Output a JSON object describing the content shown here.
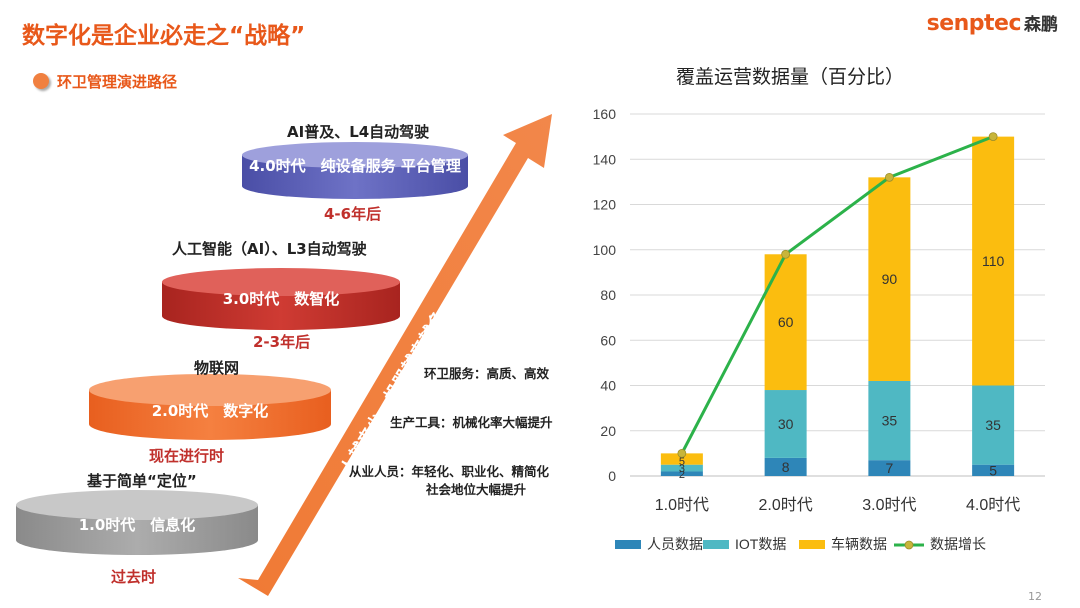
{
  "header": {
    "title": "数字化是企业必走之“战略”",
    "logo_brand": "senptec",
    "logo_cn": "森鹏",
    "subtitle": "环卫管理演进路径"
  },
  "stages": [
    {
      "caption": "AI普及、L4自动驾驶",
      "label": "4.0时代　纯设备服务 平台管理",
      "time": "4-6年后",
      "color": "#5e62b8"
    },
    {
      "caption": "人工智能（AI）、L3自动驾驶",
      "label": "3.0时代　数智化",
      "time": "2-3年后",
      "color": "#c0302c"
    },
    {
      "caption": "物联网",
      "label": "2.0时代　数字化",
      "time": "现在进行时",
      "color": "#ef6c2b"
    },
    {
      "caption": "基于简单“定位”",
      "label": "1.0时代　信息化",
      "time": "过去时",
      "color": "#9a9a9a"
    }
  ],
  "arrow_text": "人越来少，机器越来越多",
  "notes": {
    "service": "环卫服务：高质、高效",
    "tools": "生产工具：机械化率大幅提升",
    "staff_line1": "从业人员：年轻化、职业化、精简化",
    "staff_line2": "社会地位大幅提升"
  },
  "page_number": "12",
  "chart_data": {
    "type": "bar",
    "stacked": true,
    "title": "覆盖运营数据量（百分比）",
    "categories": [
      "1.0时代",
      "2.0时代",
      "3.0时代",
      "4.0时代"
    ],
    "series": [
      {
        "name": "人员数据",
        "values": [
          2,
          8,
          7,
          5
        ],
        "color": "#2e86b8"
      },
      {
        "name": "IOT数据",
        "values": [
          3,
          30,
          35,
          35
        ],
        "color": "#4fb8c3"
      },
      {
        "name": "车辆数据",
        "values": [
          5,
          60,
          90,
          110
        ],
        "color": "#fbbd0f"
      }
    ],
    "line_series": {
      "name": "数据增长",
      "values": [
        10,
        98,
        132,
        150
      ],
      "color": "#2cb24a",
      "marker_color": "#c8b53a"
    },
    "ylim": [
      0,
      160
    ],
    "yticks": [
      0,
      20,
      40,
      60,
      80,
      100,
      120,
      140,
      160
    ],
    "grid": true,
    "legend": "bottom"
  }
}
